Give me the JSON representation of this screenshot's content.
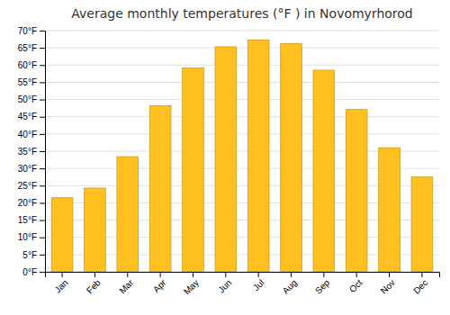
{
  "chart_data": {
    "type": "bar",
    "title": "Average monthly temperatures (°F ) in Novomyrhorod",
    "categories": [
      "Jan",
      "Feb",
      "Mar",
      "Apr",
      "May",
      "Jun",
      "Jul",
      "Aug",
      "Sep",
      "Oct",
      "Nov",
      "Dec"
    ],
    "values": [
      21.5,
      24.3,
      33.4,
      48.2,
      59.2,
      65.3,
      67.3,
      66.2,
      58.5,
      47.1,
      36.0,
      27.5
    ],
    "color": "#FFC020",
    "ylim": [
      0,
      70
    ],
    "yticks": [
      {
        "value": 0,
        "label": "0°F"
      },
      {
        "value": 5,
        "label": "5°F"
      },
      {
        "value": 10,
        "label": "10°F"
      },
      {
        "value": 15,
        "label": "15°F"
      },
      {
        "value": 20,
        "label": "20°F"
      },
      {
        "value": 25,
        "label": "25°F"
      },
      {
        "value": 30,
        "label": "30°F"
      },
      {
        "value": 35,
        "label": "35°F"
      },
      {
        "value": 40,
        "label": "40°F"
      },
      {
        "value": 45,
        "label": "45°F"
      },
      {
        "value": 50,
        "label": "50°F"
      },
      {
        "value": 55,
        "label": "55°F"
      },
      {
        "value": 60,
        "label": "60°F"
      },
      {
        "value": 65,
        "label": "65°F"
      },
      {
        "value": 70,
        "label": "70°F"
      }
    ],
    "grid": true
  }
}
